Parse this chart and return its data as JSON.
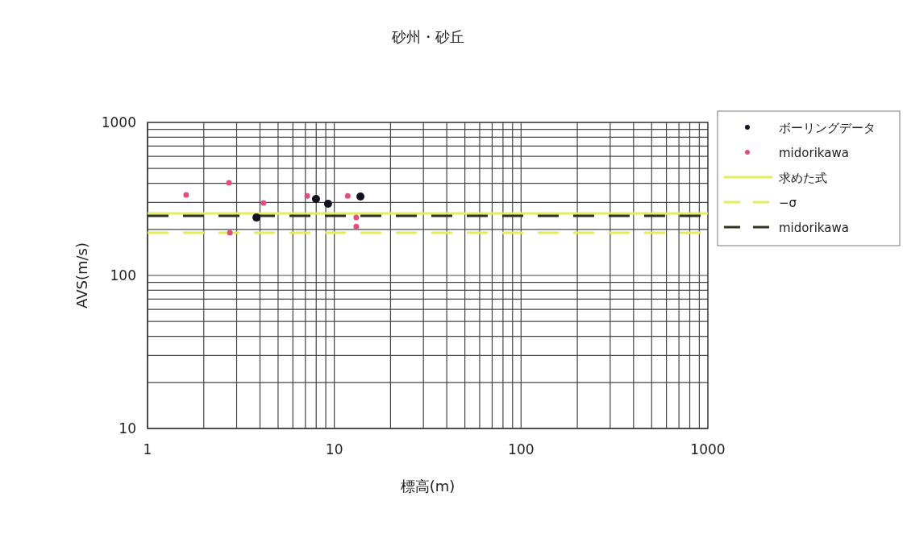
{
  "chart_data": {
    "type": "scatter",
    "title": "砂州・砂丘",
    "xlabel": "標高(m)",
    "ylabel": "AVS(m/s)",
    "log": "xy",
    "xlim": [
      1,
      1000
    ],
    "ylim": [
      10,
      1000
    ],
    "xticks": [
      1,
      10,
      100,
      1000
    ],
    "yticks": [
      10,
      100,
      1000
    ],
    "grid": true,
    "legend": "right",
    "series": [
      {
        "name": "ボーリングデータ",
        "type": "scatter",
        "marker": "circle",
        "color": "#111122",
        "x": [
          3.83,
          7.98,
          9.26,
          13.8
        ],
        "values": [
          239,
          316,
          294,
          328
        ]
      },
      {
        "name": "midorikawa",
        "type": "scatter",
        "marker": "circle",
        "color": "#e0507a",
        "x": [
          1.61,
          2.73,
          4.18,
          2.76,
          7.16,
          11.8,
          13.1,
          13.1
        ],
        "values": [
          336,
          403,
          298,
          190,
          331,
          331,
          239,
          209
        ]
      },
      {
        "name": "求めた式",
        "type": "line",
        "line_style": "solid",
        "color": "#e3ec5a",
        "x": [
          1,
          1000
        ],
        "values": [
          254,
          254
        ]
      },
      {
        "name": "−σ",
        "type": "line",
        "line_style": "dashed",
        "color": "#e3ec5a",
        "x": [
          1,
          1000
        ],
        "values": [
          190,
          190
        ]
      },
      {
        "name": "midorikawa",
        "type": "line",
        "line_style": "dashed",
        "color": "#333322",
        "x": [
          1,
          1000
        ],
        "values": [
          245,
          245
        ]
      }
    ]
  }
}
